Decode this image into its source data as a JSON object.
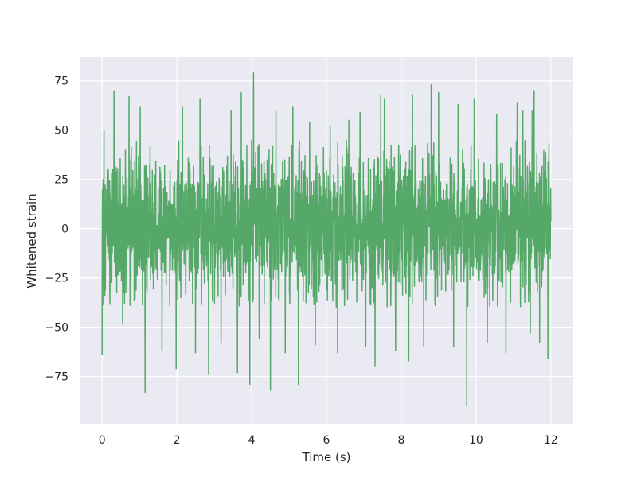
{
  "chart_data": {
    "type": "line",
    "title": "",
    "xlabel": "Time (s)",
    "ylabel": "Whitened strain",
    "xlim": [
      -0.6,
      12.6
    ],
    "ylim": [
      -99,
      87
    ],
    "xticks": [
      0,
      2,
      4,
      6,
      8,
      10,
      12
    ],
    "xtick_labels": [
      "0",
      "2",
      "4",
      "6",
      "8",
      "10",
      "12"
    ],
    "yticks": [
      -75,
      -50,
      -25,
      0,
      25,
      50,
      75
    ],
    "ytick_labels": [
      "−75",
      "−50",
      "−25",
      "0",
      "25",
      "50",
      "75"
    ],
    "grid": true,
    "legend": "none",
    "background_color": "#eaeaf2",
    "grid_color": "#ffffff",
    "series": [
      {
        "color": "#55a868",
        "x_range": [
          0,
          12
        ],
        "core_band": [
          -40,
          45
        ],
        "extremes": [
          {
            "x": 0.0,
            "y": -64
          },
          {
            "x": 0.05,
            "y": 50
          },
          {
            "x": 0.32,
            "y": 70
          },
          {
            "x": 0.55,
            "y": -48
          },
          {
            "x": 0.72,
            "y": 67
          },
          {
            "x": 1.15,
            "y": -83
          },
          {
            "x": 1.02,
            "y": 62
          },
          {
            "x": 1.6,
            "y": -62
          },
          {
            "x": 1.98,
            "y": -71
          },
          {
            "x": 2.15,
            "y": 62
          },
          {
            "x": 2.5,
            "y": -63
          },
          {
            "x": 2.62,
            "y": 66
          },
          {
            "x": 2.85,
            "y": -74
          },
          {
            "x": 3.18,
            "y": -58
          },
          {
            "x": 3.45,
            "y": 60
          },
          {
            "x": 3.62,
            "y": -73
          },
          {
            "x": 3.72,
            "y": 69
          },
          {
            "x": 3.95,
            "y": -79
          },
          {
            "x": 4.05,
            "y": 79
          },
          {
            "x": 4.2,
            "y": -56
          },
          {
            "x": 4.5,
            "y": -82
          },
          {
            "x": 4.65,
            "y": 60
          },
          {
            "x": 4.9,
            "y": -63
          },
          {
            "x": 5.1,
            "y": 62
          },
          {
            "x": 5.25,
            "y": -79
          },
          {
            "x": 5.55,
            "y": 54
          },
          {
            "x": 5.7,
            "y": -59
          },
          {
            "x": 6.1,
            "y": 52
          },
          {
            "x": 6.3,
            "y": -63
          },
          {
            "x": 6.6,
            "y": 55
          },
          {
            "x": 6.9,
            "y": 59
          },
          {
            "x": 7.05,
            "y": -60
          },
          {
            "x": 7.3,
            "y": -70
          },
          {
            "x": 7.45,
            "y": 68
          },
          {
            "x": 7.55,
            "y": 66
          },
          {
            "x": 7.85,
            "y": -62
          },
          {
            "x": 8.2,
            "y": -67
          },
          {
            "x": 8.3,
            "y": 68
          },
          {
            "x": 8.6,
            "y": -60
          },
          {
            "x": 8.8,
            "y": 73
          },
          {
            "x": 9.0,
            "y": 69
          },
          {
            "x": 9.4,
            "y": -60
          },
          {
            "x": 9.52,
            "y": 63
          },
          {
            "x": 9.75,
            "y": -90
          },
          {
            "x": 9.95,
            "y": 66
          },
          {
            "x": 10.3,
            "y": -58
          },
          {
            "x": 10.55,
            "y": 58
          },
          {
            "x": 10.8,
            "y": -63
          },
          {
            "x": 11.1,
            "y": 64
          },
          {
            "x": 11.25,
            "y": 60
          },
          {
            "x": 11.45,
            "y": -53
          },
          {
            "x": 11.5,
            "y": 60
          },
          {
            "x": 11.55,
            "y": 70
          },
          {
            "x": 11.7,
            "y": -58
          },
          {
            "x": 11.92,
            "y": -66
          },
          {
            "x": 11.95,
            "y": 43
          }
        ]
      }
    ]
  }
}
